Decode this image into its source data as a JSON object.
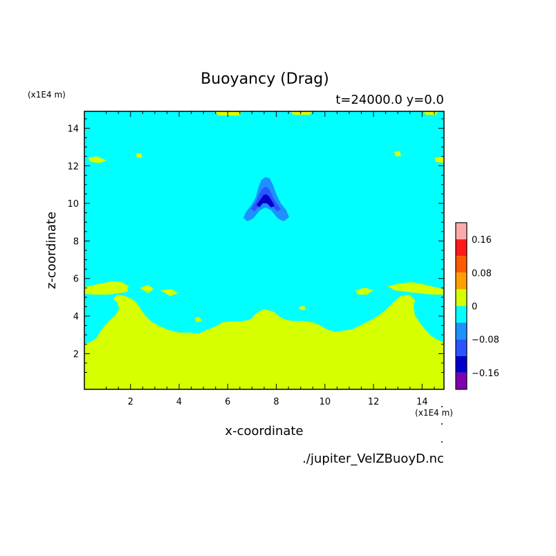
{
  "chart_data": {
    "type": "heatmap",
    "title": "Buoyancy (Drag)",
    "subtitle": "t=24000.0 y=0.0",
    "xlabel": "x-coordinate",
    "ylabel": "z-coordinate",
    "x_unit": "(x1E4 m)",
    "y_unit": "(x1E4 m)",
    "xlim": [
      0.1,
      14.9
    ],
    "ylim": [
      0.1,
      14.9
    ],
    "x_ticks": [
      "2",
      "4",
      "6",
      "8",
      "10",
      "12",
      "14"
    ],
    "y_ticks": [
      "2",
      "4",
      "6",
      "8",
      "10",
      "12",
      "14"
    ],
    "filename": "./jupiter_VelZBuoyD.nc",
    "colorbar": {
      "labels": [
        "0.16",
        "0.08",
        "0",
        "-0.08",
        "-0.16"
      ],
      "levels": [
        {
          "range": [
            0.16,
            0.2
          ],
          "color": "#ffaaaa"
        },
        {
          "range": [
            0.12,
            0.16
          ],
          "color": "#ff1a1a"
        },
        {
          "range": [
            0.08,
            0.12
          ],
          "color": "#ff5a00"
        },
        {
          "range": [
            0.04,
            0.08
          ],
          "color": "#ffa000"
        },
        {
          "range": [
            0.0,
            0.04
          ],
          "color": "#d6ff00"
        },
        {
          "range": [
            -0.04,
            0.0
          ],
          "color": "#00ffff"
        },
        {
          "range": [
            -0.08,
            -0.04
          ],
          "color": "#1e90ff"
        },
        {
          "range": [
            -0.12,
            -0.08
          ],
          "color": "#2a55ff"
        },
        {
          "range": [
            -0.16,
            -0.12
          ],
          "color": "#0000cd"
        },
        {
          "range": [
            -0.2,
            -0.16
          ],
          "color": "#8000b0"
        }
      ]
    },
    "regions": [
      {
        "name": "background",
        "range": [
          -0.04,
          0.0
        ]
      },
      {
        "name": "lower-layer",
        "range": [
          0.0,
          0.04
        ]
      },
      {
        "name": "plume-outer",
        "range": [
          -0.08,
          -0.04
        ]
      },
      {
        "name": "plume-inner",
        "range": [
          -0.12,
          -0.08
        ]
      },
      {
        "name": "plume-core",
        "range": [
          -0.16,
          -0.12
        ]
      }
    ]
  }
}
